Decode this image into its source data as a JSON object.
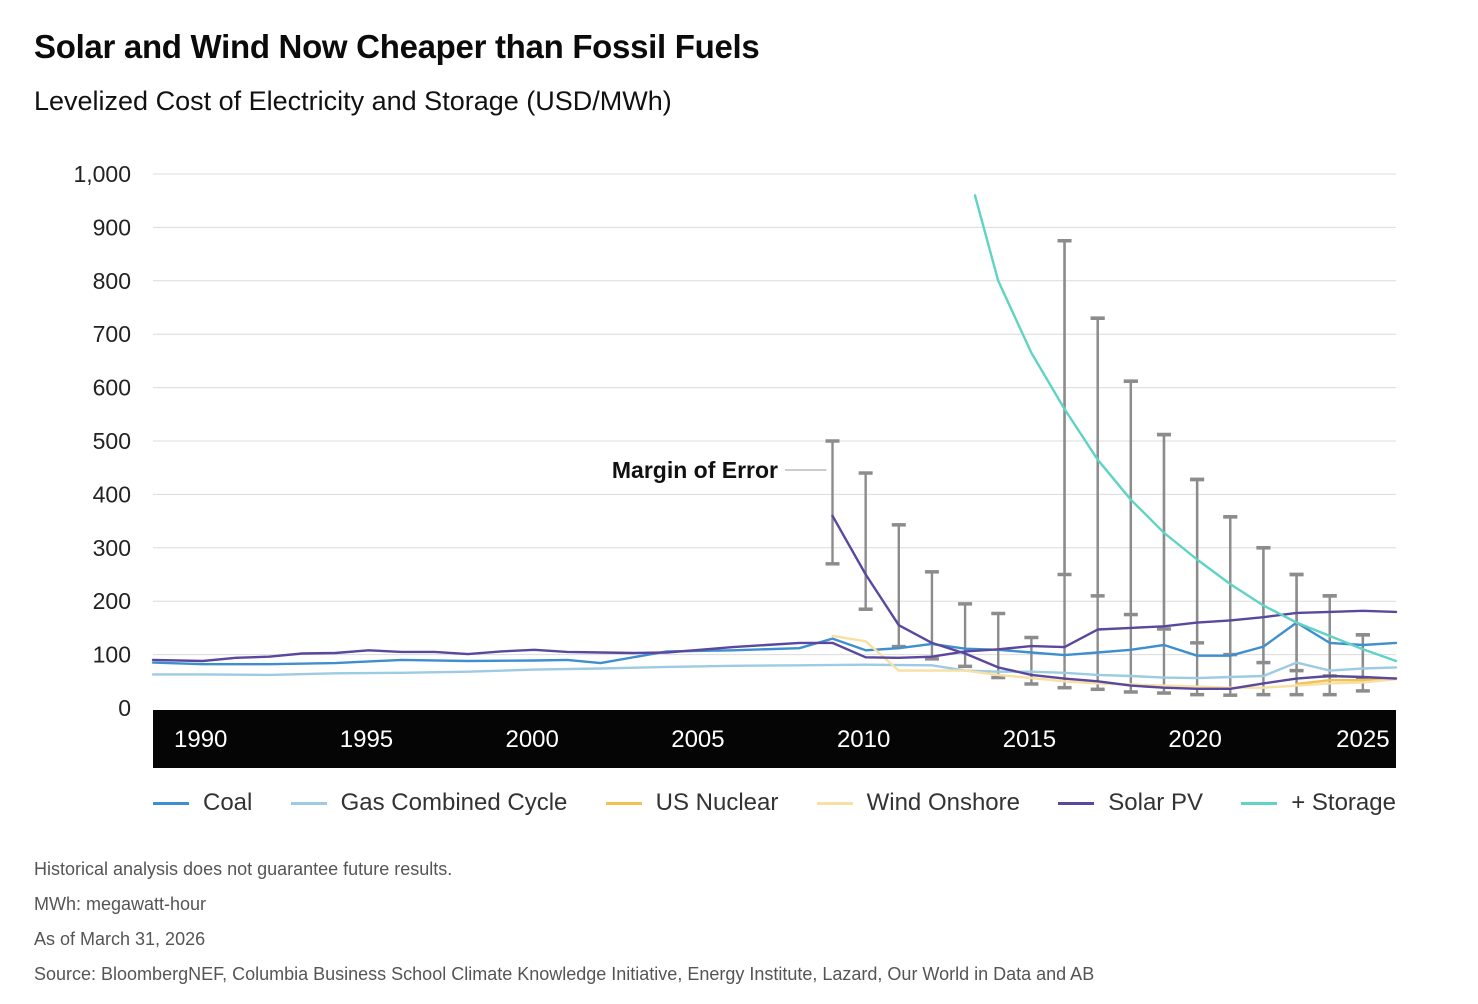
{
  "header": {
    "title": "Solar and Wind Now Cheaper than Fossil Fuels",
    "subtitle": "Levelized Cost of Electricity and Storage (USD/MWh)"
  },
  "chart_data": {
    "type": "line",
    "title": "Solar and Wind Now Cheaper than Fossil Fuels",
    "subtitle": "Levelized Cost of Electricity and Storage (USD/MWh)",
    "xlim": [
      1988.5,
      2026
    ],
    "ylim": [
      0,
      1000
    ],
    "y_ticks": [
      0,
      100,
      200,
      300,
      400,
      500,
      600,
      700,
      800,
      900,
      1000
    ],
    "y_tick_labels": [
      "0",
      "100",
      "200",
      "300",
      "400",
      "500",
      "600",
      "700",
      "800",
      "900",
      "1,000"
    ],
    "x_ticks": [
      1990,
      1995,
      2000,
      2005,
      2010,
      2015,
      2020,
      2025
    ],
    "x_tick_labels": [
      "1990",
      "1995",
      "2000",
      "2005",
      "2010",
      "2015",
      "2020",
      "2025"
    ],
    "grid": "horizontal",
    "legend_position": "bottom",
    "annotation": "Margin of Error",
    "series": [
      {
        "name": "Coal",
        "color": "#3f8fce",
        "x": [
          1988.5,
          1990,
          1992,
          1994,
          1996,
          1998,
          2000,
          2001,
          2002,
          2004,
          2006,
          2008,
          2009,
          2010,
          2011,
          2012,
          2013,
          2014,
          2015,
          2016,
          2017,
          2018,
          2019,
          2020,
          2021,
          2022,
          2023,
          2024,
          2025,
          2026
        ],
        "y": [
          85,
          82,
          82,
          84,
          90,
          88,
          89,
          90,
          84,
          106,
          108,
          112,
          130,
          108,
          112,
          120,
          111,
          109,
          104,
          99,
          104,
          109,
          118,
          98,
          98,
          115,
          160,
          122,
          118,
          122
        ]
      },
      {
        "name": "Gas Combined Cycle",
        "color": "#9ccbe3",
        "x": [
          1988.5,
          1990,
          1992,
          1994,
          1996,
          1998,
          2000,
          2002,
          2004,
          2006,
          2008,
          2010,
          2012,
          2013,
          2014,
          2015,
          2016,
          2017,
          2018,
          2019,
          2020,
          2021,
          2022,
          2023,
          2024,
          2025,
          2026
        ],
        "y": [
          63,
          63,
          62,
          65,
          66,
          68,
          72,
          74,
          77,
          79,
          80,
          81,
          80,
          70,
          68,
          68,
          66,
          62,
          60,
          57,
          56,
          58,
          60,
          85,
          70,
          74,
          76
        ]
      },
      {
        "name": "US Nuclear",
        "color": "#f2c14e",
        "x": [
          2023,
          2024,
          2025,
          2026
        ],
        "y": [
          45,
          52,
          52,
          56
        ]
      },
      {
        "name": "Wind Onshore",
        "color": "#f8dfa2",
        "x": [
          2009,
          2010,
          2011,
          2012,
          2013,
          2014,
          2015,
          2016,
          2017,
          2018,
          2019,
          2020,
          2021,
          2022,
          2023,
          2024,
          2025,
          2026
        ],
        "y": [
          135,
          125,
          70,
          70,
          70,
          62,
          56,
          50,
          46,
          44,
          42,
          40,
          38,
          38,
          42,
          46,
          48,
          54
        ]
      },
      {
        "name": "Solar PV",
        "color": "#5a479e",
        "x": [
          1988.5,
          1990,
          1991,
          1992,
          1993,
          1994,
          1995,
          1996,
          1997,
          1998,
          1999,
          2000,
          2001,
          2002,
          2003,
          2004,
          2005,
          2006,
          2007,
          2008,
          2009,
          2010,
          2011,
          2012,
          2013,
          2014,
          2015,
          2016,
          2017,
          2018,
          2019,
          2020,
          2021,
          2022,
          2023,
          2024,
          2025,
          2026
        ],
        "y": [
          90,
          88,
          94,
          96,
          102,
          103,
          108,
          105,
          105,
          101,
          106,
          109,
          105,
          104,
          103,
          104,
          109,
          114,
          118,
          122,
          122,
          95,
          94,
          96,
          106,
          110,
          116,
          114,
          147,
          150,
          153,
          160,
          164,
          170,
          178,
          180,
          182,
          180
        ]
      },
      {
        "name": "Solar PV (2009 decline)",
        "color": "#5a479e",
        "x": [
          2009,
          2010,
          2011,
          2012,
          2013,
          2014,
          2015,
          2016,
          2017,
          2018,
          2019,
          2020,
          2021,
          2022,
          2023,
          2024,
          2025,
          2026
        ],
        "y": [
          360,
          250,
          155,
          122,
          102,
          76,
          62,
          55,
          50,
          42,
          38,
          36,
          36,
          46,
          55,
          60,
          58,
          55
        ]
      },
      {
        "name": "+ Storage",
        "color": "#5fd3c4",
        "x": [
          2013.3,
          2014,
          2015,
          2016,
          2017,
          2018,
          2019,
          2020,
          2021,
          2022,
          2023,
          2024,
          2025,
          2026
        ],
        "y": [
          960,
          800,
          665,
          560,
          465,
          390,
          328,
          278,
          232,
          192,
          160,
          135,
          110,
          88
        ]
      }
    ],
    "error_bars": [
      {
        "x": 2009,
        "low": 270,
        "high": 500
      },
      {
        "x": 2010,
        "low": 185,
        "high": 440
      },
      {
        "x": 2011,
        "low": 115,
        "high": 343
      },
      {
        "x": 2012,
        "low": 92,
        "high": 255
      },
      {
        "x": 2013,
        "low": 78,
        "high": 195
      },
      {
        "x": 2014,
        "low": 57,
        "high": 177
      },
      {
        "x": 2015,
        "low": 45,
        "high": 132
      },
      {
        "x": 2016,
        "low": 38,
        "high": 875
      },
      {
        "x": 2016,
        "low": 250,
        "high": 875
      },
      {
        "x": 2017,
        "low": 35,
        "high": 730
      },
      {
        "x": 2017,
        "low": 210,
        "high": 730
      },
      {
        "x": 2018,
        "low": 30,
        "high": 612
      },
      {
        "x": 2018,
        "low": 175,
        "high": 612
      },
      {
        "x": 2019,
        "low": 28,
        "high": 512
      },
      {
        "x": 2019,
        "low": 148,
        "high": 512
      },
      {
        "x": 2020,
        "low": 25,
        "high": 428
      },
      {
        "x": 2020,
        "low": 122,
        "high": 428
      },
      {
        "x": 2021,
        "low": 24,
        "high": 358
      },
      {
        "x": 2021,
        "low": 100,
        "high": 358
      },
      {
        "x": 2022,
        "low": 25,
        "high": 300
      },
      {
        "x": 2022,
        "low": 85,
        "high": 300
      },
      {
        "x": 2023,
        "low": 25,
        "high": 250
      },
      {
        "x": 2023,
        "low": 70,
        "high": 250
      },
      {
        "x": 2024,
        "low": 25,
        "high": 210
      },
      {
        "x": 2024,
        "low": 60,
        "high": 210
      },
      {
        "x": 2025,
        "low": 32,
        "high": 137
      },
      {
        "x": 2025,
        "low": 55,
        "high": 137
      }
    ]
  },
  "legend": [
    {
      "label": "Coal",
      "color": "#3f8fce"
    },
    {
      "label": "Gas Combined Cycle",
      "color": "#9ccbe3"
    },
    {
      "label": "US Nuclear",
      "color": "#f2c14e"
    },
    {
      "label": "Wind Onshore",
      "color": "#f8dfa2"
    },
    {
      "label": "Solar PV",
      "color": "#5a479e"
    },
    {
      "label": "+ Storage",
      "color": "#5fd3c4"
    }
  ],
  "notes": [
    "Historical analysis does not guarantee future results.",
    "MWh: megawatt-hour",
    "As of March 31, 2026",
    "Source: BloombergNEF, Columbia Business School Climate Knowledge Initiative, Energy Institute, Lazard, Our World in Data and AB"
  ]
}
